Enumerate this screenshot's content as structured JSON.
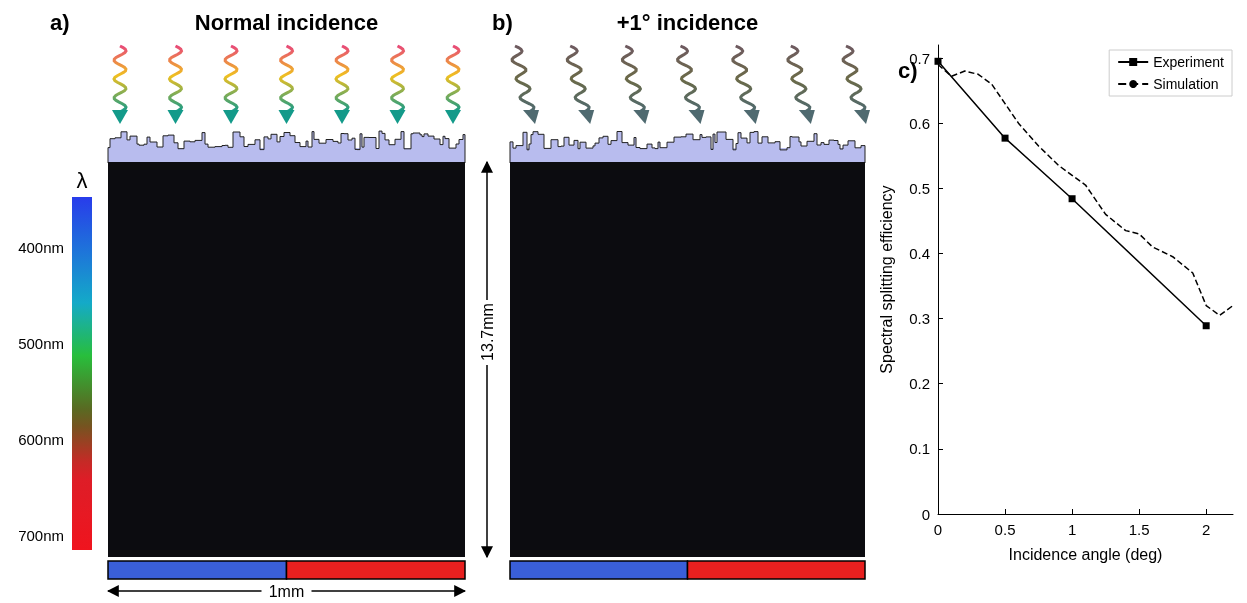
{
  "figure": {
    "panels": [
      {
        "letter": "a)",
        "title": "Normal incidence"
      },
      {
        "letter": "b)",
        "title": "+1° incidence"
      }
    ],
    "colorbar": {
      "label": "λ",
      "range": [
        347,
        715
      ],
      "ticks": [
        {
          "value": 400,
          "label": "400nm"
        },
        {
          "value": 500,
          "label": "500nm"
        },
        {
          "value": 600,
          "label": "600nm"
        },
        {
          "value": 700,
          "label": "700nm"
        }
      ]
    },
    "scale_labels": {
      "height": "13.7mm",
      "width": "1mm"
    },
    "detector_colors": [
      "#3a5fd8",
      "#e8201f"
    ]
  },
  "chart_data": {
    "type": "line",
    "letter": "c)",
    "xlabel": "Incidence angle (deg)",
    "ylabel": "Spectral splitting efficiency",
    "xlim": [
      0,
      2.2
    ],
    "xticks": [
      0,
      0.5,
      1,
      1.5,
      2
    ],
    "ylim": [
      0,
      0.72
    ],
    "yticks": [
      0,
      0.1,
      0.2,
      0.3,
      0.4,
      0.5,
      0.6,
      0.7
    ],
    "grid": false,
    "legend": "upper right",
    "series": [
      {
        "name": "Experiment",
        "color": "#000000",
        "marker": "square",
        "line_style": "solid",
        "x": [
          0,
          0.5,
          1,
          2
        ],
        "values": [
          0.695,
          0.577,
          0.484,
          0.289
        ]
      },
      {
        "name": "Simulation",
        "color": "#000000",
        "marker": "none",
        "line_style": "dashed",
        "x": [
          0,
          0.1,
          0.2,
          0.3,
          0.4,
          0.5,
          0.6,
          0.75,
          0.9,
          1.0,
          1.1,
          1.25,
          1.4,
          1.5,
          1.6,
          1.75,
          1.9,
          2.0,
          2.1,
          2.2
        ],
        "values": [
          0.69,
          0.672,
          0.68,
          0.675,
          0.66,
          0.63,
          0.6,
          0.565,
          0.535,
          0.52,
          0.505,
          0.46,
          0.435,
          0.43,
          0.41,
          0.395,
          0.37,
          0.32,
          0.305,
          0.32
        ]
      }
    ]
  }
}
